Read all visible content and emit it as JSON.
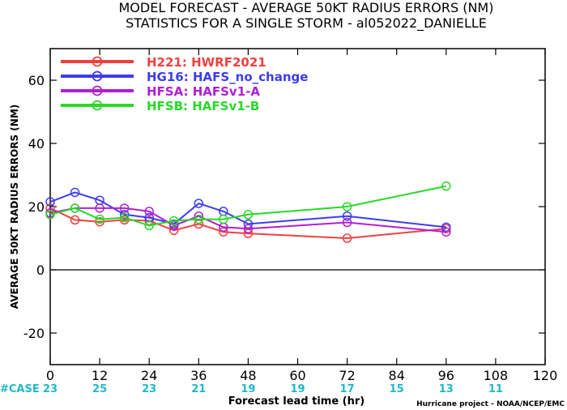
{
  "chart_data": {
    "type": "line",
    "title": "MODEL FORECAST - AVERAGE 50KT RADIUS ERRORS (NM)",
    "subtitle": "STATISTICS FOR A SINGLE STORM - al052022_DANIELLE",
    "xlabel": "Forecast lead time (hr)",
    "ylabel": "AVERAGE 50KT RADIUS ERRORS (NM)",
    "xlim": [
      0,
      120
    ],
    "ylim": [
      -30,
      70
    ],
    "x_ticks": [
      0,
      12,
      24,
      36,
      48,
      60,
      72,
      84,
      96,
      108,
      120
    ],
    "y_ticks": [
      -20,
      0,
      20,
      40,
      60
    ],
    "zero_line": true,
    "grid": false,
    "legend_position": "top-left",
    "case_label": "#CASE",
    "cases": [
      {
        "x": 0,
        "label": "23"
      },
      {
        "x": 12,
        "label": "25"
      },
      {
        "x": 24,
        "label": "23"
      },
      {
        "x": 36,
        "label": "21"
      },
      {
        "x": 48,
        "label": "19"
      },
      {
        "x": 60,
        "label": "19"
      },
      {
        "x": 72,
        "label": "17"
      },
      {
        "x": 84,
        "label": "15"
      },
      {
        "x": 96,
        "label": "13"
      },
      {
        "x": 108,
        "label": "11"
      }
    ],
    "credit": "Hurricane project - NOAA/NCEP/EMC",
    "series": [
      {
        "name": "H221: HWRF2021",
        "color": "#f04040",
        "x": [
          0,
          6,
          12,
          18,
          24,
          30,
          36,
          42,
          48,
          72,
          96
        ],
        "y": [
          19.5,
          15.8,
          15.2,
          15.8,
          15.5,
          12.5,
          14.5,
          12.0,
          11.5,
          10.0,
          13.0
        ]
      },
      {
        "name": "HG16: HAFS_no_change",
        "color": "#3c3cf0",
        "x": [
          0,
          6,
          12,
          18,
          24,
          30,
          36,
          42,
          48,
          72,
          96
        ],
        "y": [
          21.5,
          24.5,
          22.0,
          17.5,
          16.5,
          14.5,
          21.0,
          18.5,
          14.5,
          17.0,
          13.5
        ]
      },
      {
        "name": "HFSA: HAFSv1-A",
        "color": "#b020d0",
        "x": [
          0,
          6,
          12,
          18,
          24,
          30,
          36,
          42,
          48,
          72,
          96
        ],
        "y": [
          18.0,
          19.5,
          19.5,
          19.5,
          18.5,
          14.0,
          17.0,
          13.5,
          13.0,
          15.0,
          12.0
        ]
      },
      {
        "name": "HFSB: HAFSv1-B",
        "color": "#28d828",
        "x": [
          0,
          6,
          12,
          18,
          24,
          30,
          36,
          42,
          48,
          72,
          96
        ],
        "y": [
          17.5,
          19.5,
          16.0,
          16.5,
          14.0,
          15.5,
          16.0,
          16.0,
          17.5,
          20.0,
          26.5
        ]
      }
    ]
  }
}
